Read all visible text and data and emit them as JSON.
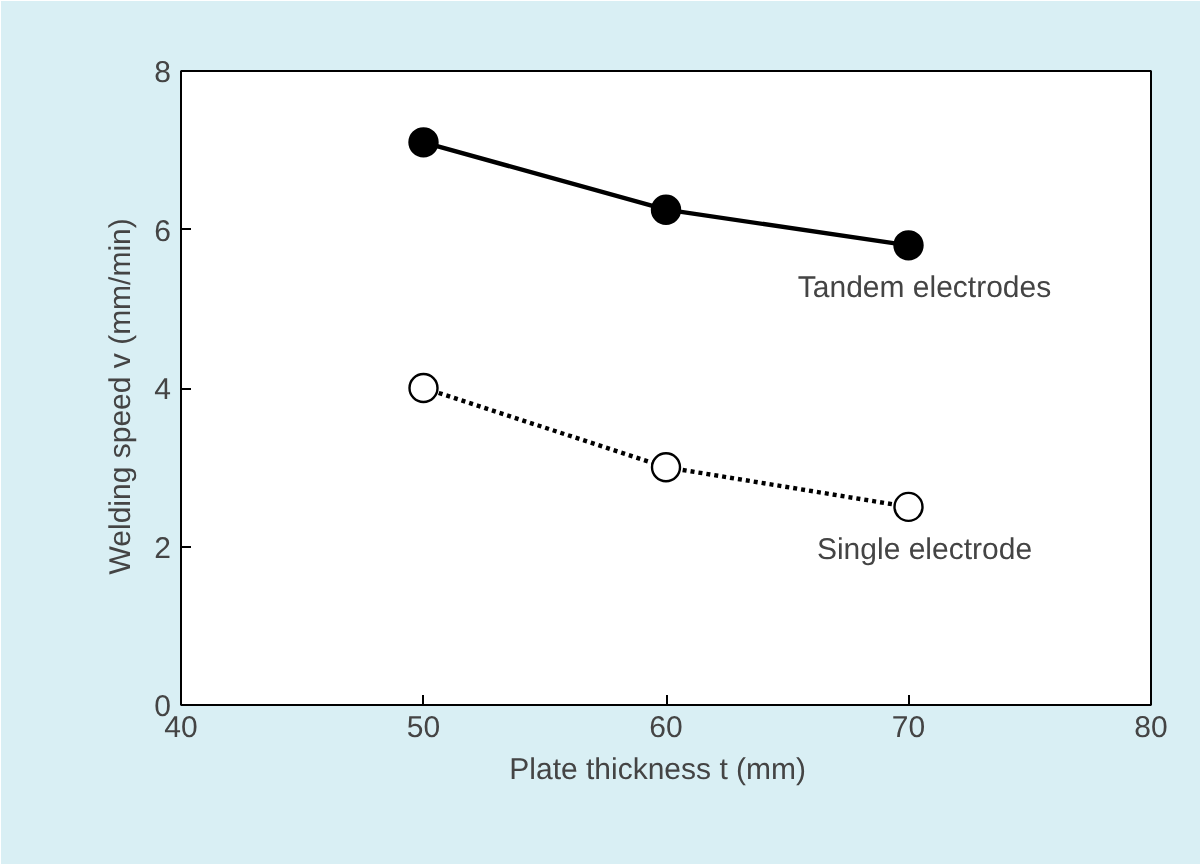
{
  "chart_data": {
    "type": "line",
    "xlabel": "Plate thickness  t  (mm)",
    "ylabel": "Welding speed  v  (mm/min)",
    "x": [
      50,
      60,
      70
    ],
    "series": [
      {
        "name": "Tandem electrodes",
        "color": "#000000",
        "values": [
          7.1,
          6.25,
          5.8
        ],
        "marker": "circle",
        "line_style": "solid"
      },
      {
        "name": "Single electrode",
        "color": "#000000",
        "values": [
          4.0,
          3.0,
          2.5
        ],
        "marker": "circle",
        "line_style": "dotted"
      }
    ],
    "xlim": [
      40,
      80
    ],
    "xticks": [
      40,
      50,
      60,
      70,
      80
    ],
    "ylim": [
      0,
      8
    ],
    "yticks": [
      0,
      2,
      4,
      6,
      8
    ],
    "grid": false
  }
}
